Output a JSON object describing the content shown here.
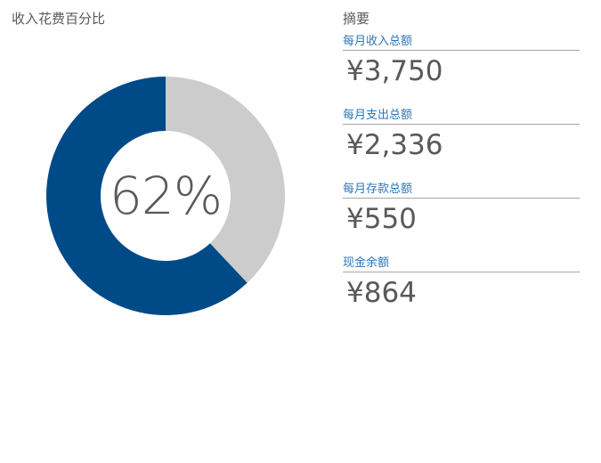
{
  "chart_data": {
    "type": "pie",
    "title": "收入花费百分比",
    "center_label": "62%",
    "slices": [
      {
        "label": "",
        "value": 62,
        "color": "#004a88"
      },
      {
        "label": "",
        "value": 38,
        "color": "#cccccc"
      }
    ],
    "donut": true
  },
  "summary": {
    "title": "摘要",
    "items": [
      {
        "label": "每月收入总额",
        "value": "¥3,750"
      },
      {
        "label": "每月支出总额",
        "value": "¥2,336"
      },
      {
        "label": "每月存款总额",
        "value": "¥550"
      },
      {
        "label": "现金余额",
        "value": "¥864"
      }
    ]
  }
}
